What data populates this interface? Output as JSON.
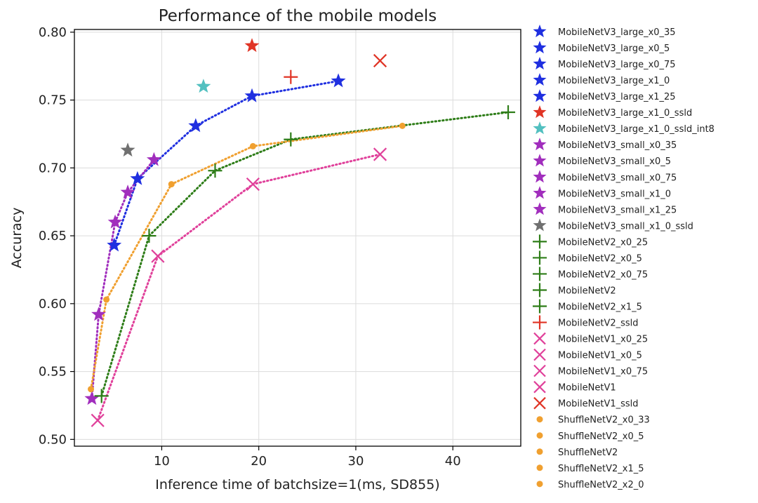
{
  "chart_data": {
    "type": "scatter",
    "title": "Performance of the mobile models",
    "xlabel": "Inference time of batchsize=1(ms, SD855)",
    "ylabel": "Accuracy",
    "xlim": [
      1.0,
      47.0
    ],
    "ylim": [
      0.495,
      0.802
    ],
    "xticks": [
      10,
      20,
      30,
      40
    ],
    "yticks": [
      0.5,
      0.55,
      0.6,
      0.65,
      0.7,
      0.75,
      0.8
    ],
    "grid": true,
    "legend_position": "outside-right",
    "lines": [
      {
        "family": "MobileNetV3_large",
        "color": "#1f2fe0",
        "x": [
          5.1,
          7.5,
          13.5,
          19.3,
          28.2
        ],
        "y": [
          0.643,
          0.692,
          0.731,
          0.753,
          0.764
        ]
      },
      {
        "family": "MobileNetV3_small",
        "color": "#a12ebd",
        "x": [
          2.8,
          3.5,
          5.2,
          6.5,
          9.2
        ],
        "y": [
          0.53,
          0.592,
          0.66,
          0.682,
          0.706
        ]
      },
      {
        "family": "MobileNetV2",
        "color": "#2e7d18",
        "x": [
          3.8,
          8.7,
          15.5,
          23.3,
          45.7
        ],
        "y": [
          0.532,
          0.65,
          0.698,
          0.721,
          0.741
        ]
      },
      {
        "family": "MobileNetV1",
        "color": "#e0409a",
        "x": [
          3.4,
          9.6,
          19.4,
          32.5
        ],
        "y": [
          0.514,
          0.635,
          0.688,
          0.71
        ]
      },
      {
        "family": "ShuffleNetV2",
        "color": "#f0a030",
        "x": [
          2.7,
          4.3,
          11.0,
          19.4,
          34.8
        ],
        "y": [
          0.537,
          0.603,
          0.688,
          0.716,
          0.731
        ]
      }
    ],
    "series": [
      {
        "name": "MobileNetV3_large_x0_35",
        "marker": "star",
        "color": "#1f2fe0",
        "x": 5.1,
        "y": 0.643
      },
      {
        "name": "MobileNetV3_large_x0_5",
        "marker": "star",
        "color": "#1f2fe0",
        "x": 7.5,
        "y": 0.692
      },
      {
        "name": "MobileNetV3_large_x0_75",
        "marker": "star",
        "color": "#1f2fe0",
        "x": 13.5,
        "y": 0.731
      },
      {
        "name": "MobileNetV3_large_x1_0",
        "marker": "star",
        "color": "#1f2fe0",
        "x": 19.3,
        "y": 0.753
      },
      {
        "name": "MobileNetV3_large_x1_25",
        "marker": "star",
        "color": "#1f2fe0",
        "x": 28.2,
        "y": 0.764
      },
      {
        "name": "MobileNetV3_large_x1_0_ssld",
        "marker": "star",
        "color": "#e03425",
        "x": 19.3,
        "y": 0.79
      },
      {
        "name": "MobileNetV3_large_x1_0_ssld_int8",
        "marker": "star",
        "color": "#52c0c0",
        "x": 14.3,
        "y": 0.76
      },
      {
        "name": "MobileNetV3_small_x0_35",
        "marker": "star",
        "color": "#a12ebd",
        "x": 2.8,
        "y": 0.53
      },
      {
        "name": "MobileNetV3_small_x0_5",
        "marker": "star",
        "color": "#a12ebd",
        "x": 3.5,
        "y": 0.592
      },
      {
        "name": "MobileNetV3_small_x0_75",
        "marker": "star",
        "color": "#a12ebd",
        "x": 5.2,
        "y": 0.66
      },
      {
        "name": "MobileNetV3_small_x1_0",
        "marker": "star",
        "color": "#a12ebd",
        "x": 6.5,
        "y": 0.682
      },
      {
        "name": "MobileNetV3_small_x1_25",
        "marker": "star",
        "color": "#a12ebd",
        "x": 9.2,
        "y": 0.706
      },
      {
        "name": "MobileNetV3_small_x1_0_ssld",
        "marker": "star",
        "color": "#707070",
        "x": 6.5,
        "y": 0.713
      },
      {
        "name": "MobileNetV2_x0_25",
        "marker": "plus",
        "color": "#2e7d18",
        "x": 3.8,
        "y": 0.532
      },
      {
        "name": "MobileNetV2_x0_5",
        "marker": "plus",
        "color": "#2e7d18",
        "x": 8.7,
        "y": 0.65
      },
      {
        "name": "MobileNetV2_x0_75",
        "marker": "plus",
        "color": "#2e7d18",
        "x": 15.5,
        "y": 0.698
      },
      {
        "name": "MobileNetV2",
        "marker": "plus",
        "color": "#2e7d18",
        "x": 23.3,
        "y": 0.721
      },
      {
        "name": "MobileNetV2_x1_5",
        "marker": "plus",
        "color": "#2e7d18",
        "x": 45.7,
        "y": 0.741
      },
      {
        "name": "MobileNetV2_ssld",
        "marker": "plus",
        "color": "#e03425",
        "x": 23.3,
        "y": 0.767
      },
      {
        "name": "MobileNetV1_x0_25",
        "marker": "x",
        "color": "#e0409a",
        "x": 3.4,
        "y": 0.514
      },
      {
        "name": "MobileNetV1_x0_5",
        "marker": "x",
        "color": "#e0409a",
        "x": 9.6,
        "y": 0.635
      },
      {
        "name": "MobileNetV1_x0_75",
        "marker": "x",
        "color": "#e0409a",
        "x": 19.4,
        "y": 0.688
      },
      {
        "name": "MobileNetV1",
        "marker": "x",
        "color": "#e0409a",
        "x": 32.5,
        "y": 0.71
      },
      {
        "name": "MobileNetV1_ssld",
        "marker": "x",
        "color": "#e03425",
        "x": 32.5,
        "y": 0.779
      },
      {
        "name": "ShuffleNetV2_x0_33",
        "marker": "dot",
        "color": "#f0a030",
        "x": 2.7,
        "y": 0.537
      },
      {
        "name": "ShuffleNetV2_x0_5",
        "marker": "dot",
        "color": "#f0a030",
        "x": 4.3,
        "y": 0.603
      },
      {
        "name": "ShuffleNetV2",
        "marker": "dot",
        "color": "#f0a030",
        "x": 11.0,
        "y": 0.688
      },
      {
        "name": "ShuffleNetV2_x1_5",
        "marker": "dot",
        "color": "#f0a030",
        "x": 19.4,
        "y": 0.716
      },
      {
        "name": "ShuffleNetV2_x2_0",
        "marker": "dot",
        "color": "#f0a030",
        "x": 34.8,
        "y": 0.731
      }
    ]
  }
}
